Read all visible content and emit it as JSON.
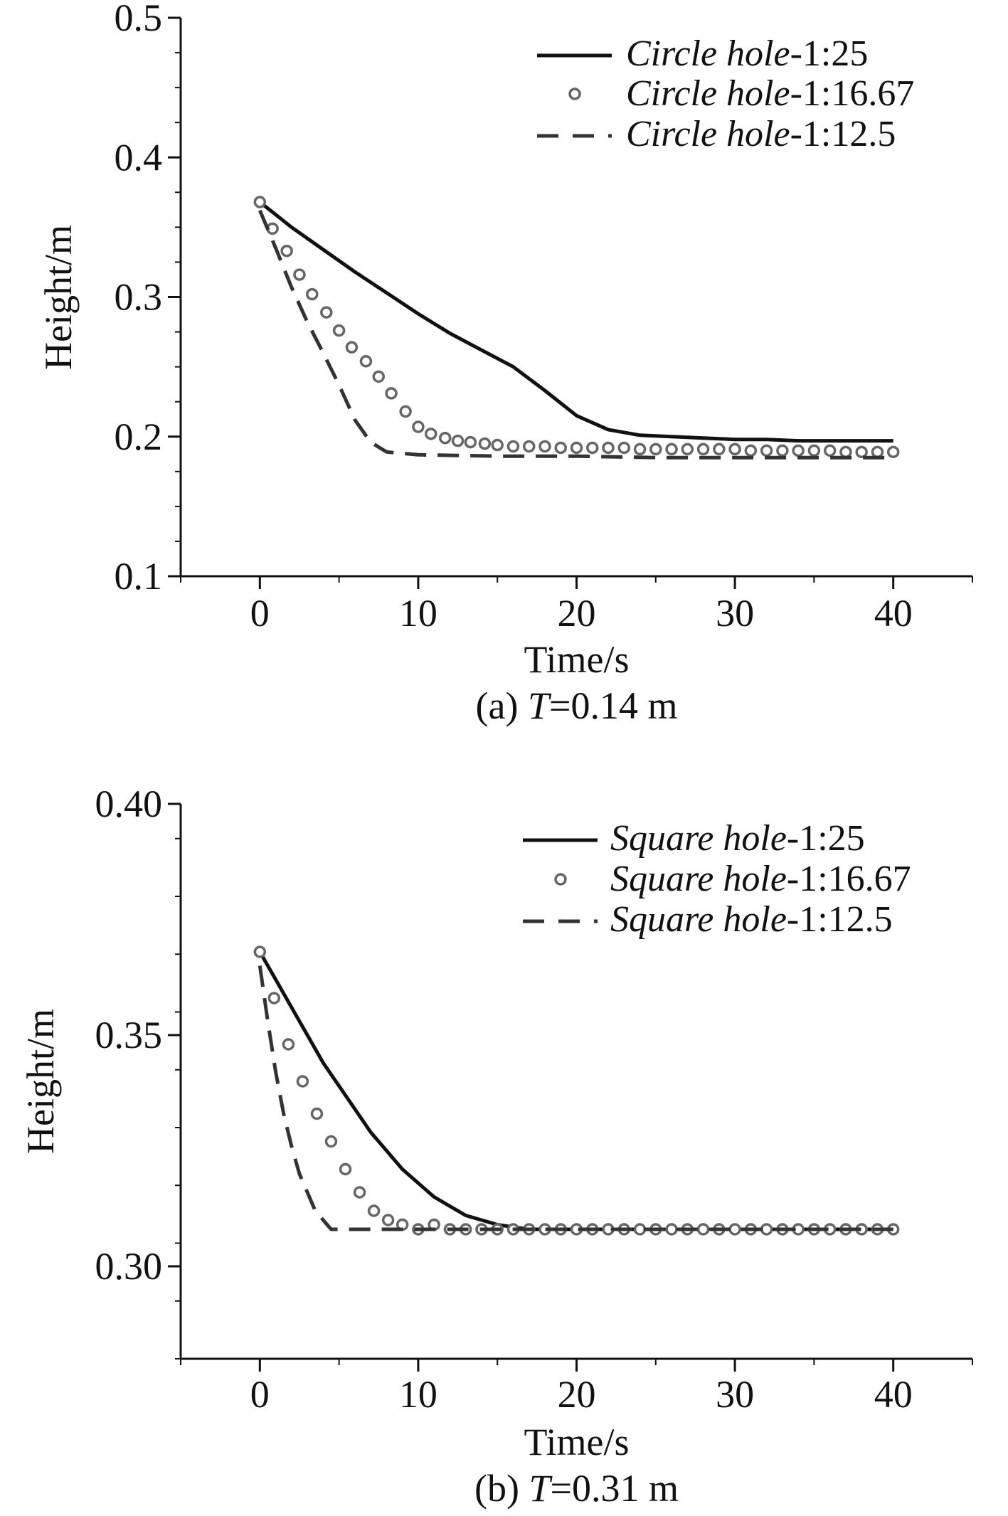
{
  "chart_data": [
    {
      "type": "line",
      "caption": {
        "prefix": "(a) ",
        "var": "T",
        "suffix": "=0.14 m"
      },
      "xlabel": "Time/s",
      "ylabel": "Height/m",
      "xlim": [
        -5,
        45
      ],
      "ylim": [
        0.1,
        0.5
      ],
      "xticks": [
        0,
        10,
        20,
        30,
        40
      ],
      "yticks": [
        0.1,
        0.2,
        0.3,
        0.4,
        0.5
      ],
      "ytick_labels": [
        "0.1",
        "0.2",
        "0.3",
        "0.4",
        "0.5"
      ],
      "minor_y_step": 0.025,
      "minor_x_step": 5,
      "legend_position": "top-right",
      "series": [
        {
          "name_italic": "Circle hole",
          "name_suffix": "-1:25",
          "style": "solid",
          "x": [
            0,
            2,
            4,
            6,
            8,
            10,
            12,
            14,
            16,
            18,
            20,
            22,
            24,
            26,
            28,
            30,
            32,
            34,
            36,
            38,
            40
          ],
          "values": [
            0.368,
            0.35,
            0.334,
            0.318,
            0.303,
            0.288,
            0.274,
            0.262,
            0.25,
            0.233,
            0.215,
            0.205,
            0.201,
            0.2,
            0.199,
            0.198,
            0.198,
            0.197,
            0.197,
            0.197,
            0.197
          ]
        },
        {
          "name_italic": "Circle hole",
          "name_suffix": "-1:16.67",
          "style": "circles",
          "x": [
            0,
            0.8,
            1.7,
            2.5,
            3.3,
            4.2,
            5.0,
            5.8,
            6.7,
            7.5,
            8.3,
            9.2,
            10,
            10.8,
            11.7,
            12.5,
            13.3,
            14.2,
            15,
            16,
            17,
            18,
            19,
            20,
            21,
            22,
            23,
            24,
            25,
            26,
            27,
            28,
            29,
            30,
            31,
            32,
            33,
            34,
            35,
            36,
            37,
            38,
            39,
            40
          ],
          "values": [
            0.368,
            0.349,
            0.333,
            0.316,
            0.302,
            0.289,
            0.276,
            0.264,
            0.254,
            0.243,
            0.231,
            0.218,
            0.207,
            0.202,
            0.199,
            0.197,
            0.196,
            0.195,
            0.194,
            0.193,
            0.193,
            0.193,
            0.192,
            0.192,
            0.192,
            0.192,
            0.192,
            0.191,
            0.191,
            0.191,
            0.191,
            0.191,
            0.191,
            0.191,
            0.19,
            0.19,
            0.19,
            0.19,
            0.19,
            0.19,
            0.189,
            0.189,
            0.189,
            0.189
          ]
        },
        {
          "name_italic": "Circle hole",
          "name_suffix": "-1:12.5",
          "style": "dashed",
          "x": [
            0,
            1,
            2,
            3,
            4,
            5,
            6,
            7,
            8,
            10,
            15,
            20,
            25,
            30,
            35,
            40
          ],
          "values": [
            0.362,
            0.335,
            0.307,
            0.282,
            0.26,
            0.237,
            0.212,
            0.196,
            0.189,
            0.187,
            0.186,
            0.186,
            0.185,
            0.185,
            0.185,
            0.185
          ]
        }
      ]
    },
    {
      "type": "line",
      "caption": {
        "prefix": "(b) ",
        "var": "T",
        "suffix": "=0.31 m"
      },
      "xlabel": "Time/s",
      "ylabel": "Height/m",
      "xlim": [
        -5,
        45
      ],
      "ylim": [
        0.28,
        0.4
      ],
      "xticks": [
        0,
        10,
        20,
        30,
        40
      ],
      "yticks": [
        0.3,
        0.35,
        0.4
      ],
      "ytick_labels": [
        "0.30",
        "0.35",
        "0.40"
      ],
      "minor_y_step": 0.0125,
      "minor_x_step": 5,
      "legend_position": "top-right",
      "series": [
        {
          "name_italic": "Square hole",
          "name_suffix": "-1:25",
          "style": "solid",
          "x": [
            0,
            1,
            2,
            3,
            4,
            5,
            6,
            7,
            8,
            9,
            10,
            11,
            12,
            13,
            14,
            15,
            16,
            17,
            18,
            20,
            25,
            30,
            35,
            40
          ],
          "values": [
            0.368,
            0.362,
            0.356,
            0.35,
            0.344,
            0.339,
            0.334,
            0.329,
            0.325,
            0.321,
            0.318,
            0.315,
            0.313,
            0.311,
            0.31,
            0.309,
            0.3085,
            0.308,
            0.308,
            0.308,
            0.308,
            0.308,
            0.308,
            0.308
          ]
        },
        {
          "name_italic": "Square hole",
          "name_suffix": "-1:16.67",
          "style": "circles",
          "x": [
            0,
            0.9,
            1.8,
            2.7,
            3.6,
            4.5,
            5.4,
            6.3,
            7.2,
            8.1,
            9.0,
            10.0,
            11.0,
            12.0,
            13.0,
            14.0,
            15.0,
            16.0,
            17.0,
            18.0,
            19.0,
            20.0,
            21.0,
            22.0,
            23.0,
            24.0,
            25.0,
            26.0,
            27.0,
            28.0,
            29.0,
            30.0,
            31.0,
            32.0,
            33.0,
            34.0,
            35.0,
            36.0,
            37.0,
            38.0,
            39.0,
            40.0
          ],
          "values": [
            0.368,
            0.358,
            0.348,
            0.34,
            0.333,
            0.327,
            0.321,
            0.316,
            0.312,
            0.31,
            0.309,
            0.308,
            0.309,
            0.308,
            0.308,
            0.308,
            0.308,
            0.308,
            0.308,
            0.308,
            0.308,
            0.308,
            0.308,
            0.308,
            0.308,
            0.308,
            0.308,
            0.308,
            0.308,
            0.308,
            0.308,
            0.308,
            0.308,
            0.308,
            0.308,
            0.308,
            0.308,
            0.308,
            0.308,
            0.308,
            0.308,
            0.308
          ]
        },
        {
          "name_italic": "Square hole",
          "name_suffix": "-1:12.5",
          "style": "dashed",
          "x": [
            0,
            0.5,
            1,
            1.5,
            2,
            2.5,
            3,
            3.5,
            4,
            4.5,
            5,
            6,
            8,
            10,
            20,
            30,
            40
          ],
          "values": [
            0.365,
            0.353,
            0.342,
            0.333,
            0.326,
            0.32,
            0.316,
            0.312,
            0.31,
            0.308,
            0.308,
            0.308,
            0.308,
            0.308,
            0.308,
            0.308,
            0.308
          ]
        }
      ]
    }
  ]
}
